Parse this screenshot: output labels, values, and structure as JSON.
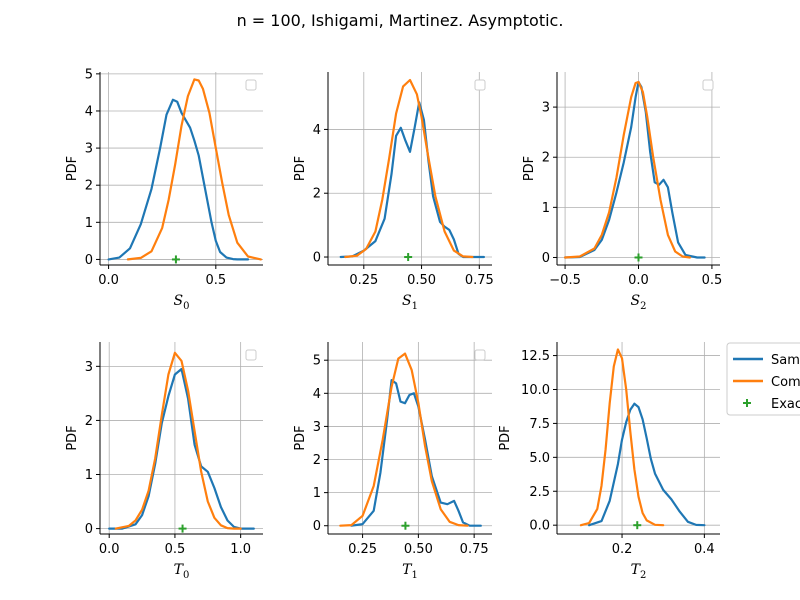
{
  "figure_title": "n = 100, Ishigami, Martinez. Asymptotic.",
  "colors": {
    "sample": "#1f77b4",
    "computed": "#ff7f0e",
    "exact": "#2ca02c",
    "grid": "#b0b0b0"
  },
  "legend": {
    "entries": [
      {
        "label": "Sam",
        "color": "#1f77b4",
        "kind": "line"
      },
      {
        "label": "Com",
        "color": "#ff7f0e",
        "kind": "line"
      },
      {
        "label": "Exac",
        "color": "#2ca02c",
        "kind": "plus"
      }
    ]
  },
  "chart_data": [
    {
      "type": "line",
      "ylabel": "PDF",
      "xlabel_symbol": "S",
      "xlabel_sub": "0",
      "xlim": [
        -0.04,
        0.72
      ],
      "ylim": [
        -0.15,
        5.05
      ],
      "xticks": [
        {
          "v": 0.0,
          "t": "0.0"
        },
        {
          "v": 0.5,
          "t": "0.5"
        }
      ],
      "yticks": [
        {
          "v": 0,
          "t": "0"
        },
        {
          "v": 1,
          "t": "1"
        },
        {
          "v": 2,
          "t": "2"
        },
        {
          "v": 3,
          "t": "3"
        },
        {
          "v": 4,
          "t": "4"
        },
        {
          "v": 5,
          "t": "5"
        }
      ],
      "empty_legend": true,
      "series": [
        {
          "color": "sample",
          "x": [
            0.0,
            0.05,
            0.1,
            0.15,
            0.2,
            0.24,
            0.27,
            0.3,
            0.32,
            0.34,
            0.36,
            0.38,
            0.4,
            0.42,
            0.45,
            0.48,
            0.5,
            0.52,
            0.55,
            0.58,
            0.6,
            0.65
          ],
          "y": [
            0.0,
            0.05,
            0.3,
            0.95,
            1.9,
            3.0,
            3.9,
            4.3,
            4.25,
            3.95,
            3.75,
            3.55,
            3.2,
            2.8,
            1.9,
            1.0,
            0.5,
            0.2,
            0.05,
            0.01,
            0.0,
            0.0
          ]
        },
        {
          "color": "computed",
          "x": [
            0.09,
            0.15,
            0.2,
            0.25,
            0.28,
            0.31,
            0.34,
            0.37,
            0.4,
            0.42,
            0.44,
            0.47,
            0.5,
            0.53,
            0.56,
            0.6,
            0.65,
            0.71
          ],
          "y": [
            0.0,
            0.04,
            0.22,
            0.85,
            1.6,
            2.55,
            3.6,
            4.4,
            4.85,
            4.82,
            4.6,
            3.95,
            3.0,
            2.05,
            1.2,
            0.45,
            0.08,
            0.0
          ]
        }
      ],
      "exact": [
        0.314,
        0
      ]
    },
    {
      "type": "line",
      "ylabel": "PDF",
      "xlabel_symbol": "S",
      "xlabel_sub": "1",
      "xlim": [
        0.095,
        0.805
      ],
      "ylim": [
        -0.25,
        5.8
      ],
      "xticks": [
        {
          "v": 0.25,
          "t": "0.25"
        },
        {
          "v": 0.5,
          "t": "0.50"
        },
        {
          "v": 0.75,
          "t": "0.75"
        }
      ],
      "yticks": [
        {
          "v": 0,
          "t": "0"
        },
        {
          "v": 2,
          "t": "2"
        },
        {
          "v": 4,
          "t": "4"
        }
      ],
      "empty_legend": true,
      "series": [
        {
          "color": "sample",
          "x": [
            0.15,
            0.2,
            0.25,
            0.3,
            0.34,
            0.37,
            0.39,
            0.41,
            0.43,
            0.45,
            0.47,
            0.49,
            0.51,
            0.53,
            0.55,
            0.58,
            0.6,
            0.62,
            0.64,
            0.66,
            0.68,
            0.72,
            0.77
          ],
          "y": [
            0.0,
            0.02,
            0.2,
            0.5,
            1.2,
            2.6,
            3.8,
            4.05,
            3.65,
            3.3,
            4.05,
            4.85,
            4.3,
            3.0,
            1.9,
            1.1,
            0.95,
            0.85,
            0.55,
            0.1,
            0.0,
            0.0,
            0.0
          ]
        },
        {
          "color": "computed",
          "x": [
            0.17,
            0.22,
            0.26,
            0.3,
            0.33,
            0.36,
            0.39,
            0.42,
            0.45,
            0.48,
            0.5,
            0.53,
            0.56,
            0.6,
            0.64,
            0.68,
            0.72
          ],
          "y": [
            0.0,
            0.04,
            0.25,
            0.8,
            1.8,
            3.1,
            4.5,
            5.35,
            5.55,
            5.1,
            4.4,
            3.1,
            1.9,
            0.8,
            0.2,
            0.02,
            0.0
          ]
        }
      ],
      "exact": [
        0.442,
        0
      ]
    },
    {
      "type": "line",
      "ylabel": "PDF",
      "xlabel_symbol": "S",
      "xlabel_sub": "2",
      "xlim": [
        -0.555,
        0.555
      ],
      "ylim": [
        -0.15,
        3.7
      ],
      "xticks": [
        {
          "v": -0.5,
          "t": "−0.5"
        },
        {
          "v": 0.0,
          "t": "0.0"
        },
        {
          "v": 0.5,
          "t": "0.5"
        }
      ],
      "yticks": [
        {
          "v": 0,
          "t": "0"
        },
        {
          "v": 1,
          "t": "1"
        },
        {
          "v": 2,
          "t": "2"
        },
        {
          "v": 3,
          "t": "3"
        }
      ],
      "empty_legend": true,
      "series": [
        {
          "color": "sample",
          "x": [
            -0.5,
            -0.4,
            -0.3,
            -0.25,
            -0.2,
            -0.15,
            -0.1,
            -0.05,
            -0.02,
            0.0,
            0.02,
            0.05,
            0.08,
            0.11,
            0.14,
            0.17,
            0.2,
            0.23,
            0.27,
            0.32,
            0.4,
            0.45
          ],
          "y": [
            0.0,
            0.01,
            0.15,
            0.35,
            0.75,
            1.3,
            1.9,
            2.6,
            3.2,
            3.5,
            3.4,
            2.9,
            2.1,
            1.5,
            1.45,
            1.55,
            1.4,
            0.9,
            0.3,
            0.05,
            0.0,
            0.0
          ]
        },
        {
          "color": "computed",
          "x": [
            -0.5,
            -0.4,
            -0.3,
            -0.25,
            -0.2,
            -0.15,
            -0.1,
            -0.05,
            -0.02,
            0.0,
            0.03,
            0.06,
            0.1,
            0.15,
            0.2,
            0.25,
            0.3,
            0.35
          ],
          "y": [
            0.0,
            0.02,
            0.18,
            0.45,
            0.9,
            1.6,
            2.45,
            3.2,
            3.48,
            3.5,
            3.3,
            2.8,
            2.0,
            1.15,
            0.45,
            0.12,
            0.02,
            0.0
          ]
        }
      ],
      "exact": [
        0.0,
        0
      ]
    },
    {
      "type": "line",
      "ylabel": "PDF",
      "xlabel_symbol": "T",
      "xlabel_sub": "0",
      "xlim": [
        -0.07,
        1.17
      ],
      "ylim": [
        -0.1,
        3.45
      ],
      "xticks": [
        {
          "v": 0.0,
          "t": "0.0"
        },
        {
          "v": 0.5,
          "t": "0.5"
        },
        {
          "v": 1.0,
          "t": "1.0"
        }
      ],
      "yticks": [
        {
          "v": 0,
          "t": "0"
        },
        {
          "v": 1,
          "t": "1"
        },
        {
          "v": 2,
          "t": "2"
        },
        {
          "v": 3,
          "t": "3"
        }
      ],
      "empty_legend": true,
      "series": [
        {
          "color": "sample",
          "x": [
            0.0,
            0.1,
            0.2,
            0.25,
            0.3,
            0.35,
            0.4,
            0.45,
            0.5,
            0.55,
            0.6,
            0.65,
            0.7,
            0.75,
            0.8,
            0.85,
            0.9,
            0.95,
            1.0,
            1.1
          ],
          "y": [
            0.0,
            0.0,
            0.08,
            0.25,
            0.6,
            1.2,
            1.95,
            2.45,
            2.85,
            2.95,
            2.4,
            1.55,
            1.15,
            1.05,
            0.75,
            0.4,
            0.15,
            0.03,
            0.0,
            0.0
          ]
        },
        {
          "color": "computed",
          "x": [
            0.05,
            0.15,
            0.2,
            0.25,
            0.3,
            0.35,
            0.4,
            0.45,
            0.5,
            0.55,
            0.6,
            0.65,
            0.7,
            0.75,
            0.8,
            0.85,
            0.9,
            0.95,
            1.0
          ],
          "y": [
            0.0,
            0.05,
            0.15,
            0.35,
            0.7,
            1.3,
            2.1,
            2.85,
            3.25,
            3.1,
            2.55,
            1.8,
            1.05,
            0.5,
            0.2,
            0.06,
            0.01,
            0.0,
            0.0
          ]
        }
      ],
      "exact": [
        0.558,
        0
      ]
    },
    {
      "type": "line",
      "ylabel": "PDF",
      "xlabel_symbol": "T",
      "xlabel_sub": "1",
      "xlim": [
        0.095,
        0.83
      ],
      "ylim": [
        -0.25,
        5.55
      ],
      "xticks": [
        {
          "v": 0.25,
          "t": "0.25"
        },
        {
          "v": 0.5,
          "t": "0.50"
        },
        {
          "v": 0.75,
          "t": "0.75"
        }
      ],
      "yticks": [
        {
          "v": 0,
          "t": "0"
        },
        {
          "v": 1,
          "t": "1"
        },
        {
          "v": 2,
          "t": "2"
        },
        {
          "v": 3,
          "t": "3"
        },
        {
          "v": 4,
          "t": "4"
        },
        {
          "v": 5,
          "t": "5"
        }
      ],
      "empty_legend": true,
      "series": [
        {
          "color": "sample",
          "x": [
            0.2,
            0.25,
            0.3,
            0.33,
            0.36,
            0.38,
            0.4,
            0.42,
            0.44,
            0.46,
            0.48,
            0.5,
            0.53,
            0.56,
            0.6,
            0.63,
            0.66,
            0.68,
            0.7,
            0.73,
            0.78
          ],
          "y": [
            0.0,
            0.05,
            0.45,
            1.6,
            3.2,
            4.4,
            4.3,
            3.75,
            3.7,
            3.95,
            4.0,
            3.6,
            2.6,
            1.5,
            0.7,
            0.65,
            0.75,
            0.45,
            0.1,
            0.0,
            0.0
          ]
        },
        {
          "color": "computed",
          "x": [
            0.15,
            0.2,
            0.25,
            0.3,
            0.34,
            0.38,
            0.41,
            0.44,
            0.47,
            0.5,
            0.53,
            0.56,
            0.6,
            0.64,
            0.68,
            0.72
          ],
          "y": [
            0.0,
            0.02,
            0.3,
            1.2,
            2.6,
            4.2,
            5.05,
            5.2,
            4.7,
            3.7,
            2.4,
            1.35,
            0.5,
            0.12,
            0.02,
            0.0
          ]
        }
      ],
      "exact": [
        0.442,
        0
      ]
    },
    {
      "type": "line",
      "ylabel": "PDF",
      "xlabel_symbol": "T",
      "xlabel_sub": "2",
      "xlim": [
        0.042,
        0.438
      ],
      "ylim": [
        -0.65,
        13.5
      ],
      "xticks": [
        {
          "v": 0.2,
          "t": "0.2"
        },
        {
          "v": 0.4,
          "t": "0.4"
        }
      ],
      "yticks": [
        {
          "v": 0,
          "t": "0.0"
        },
        {
          "v": 2.5,
          "t": "2.5"
        },
        {
          "v": 5,
          "t": "5.0"
        },
        {
          "v": 7.5,
          "t": "7.5"
        },
        {
          "v": 10,
          "t": "10.0"
        },
        {
          "v": 12.5,
          "t": "12.5"
        }
      ],
      "empty_legend": false,
      "series": [
        {
          "color": "sample",
          "x": [
            0.12,
            0.15,
            0.17,
            0.19,
            0.2,
            0.21,
            0.22,
            0.23,
            0.24,
            0.25,
            0.26,
            0.27,
            0.28,
            0.3,
            0.32,
            0.34,
            0.36,
            0.38,
            0.4
          ],
          "y": [
            0.0,
            0.3,
            1.8,
            4.5,
            6.3,
            7.6,
            8.5,
            8.95,
            8.7,
            7.8,
            6.4,
            4.9,
            3.8,
            2.6,
            1.9,
            1.0,
            0.25,
            0.02,
            0.0
          ]
        },
        {
          "color": "computed",
          "x": [
            0.1,
            0.12,
            0.14,
            0.15,
            0.16,
            0.17,
            0.18,
            0.19,
            0.2,
            0.21,
            0.22,
            0.23,
            0.24,
            0.25,
            0.26,
            0.28,
            0.3
          ],
          "y": [
            0.0,
            0.15,
            1.2,
            2.9,
            5.6,
            9.0,
            11.7,
            12.95,
            12.3,
            10.0,
            6.9,
            4.1,
            2.1,
            0.9,
            0.35,
            0.03,
            0.0
          ]
        }
      ],
      "exact": [
        0.237,
        0
      ]
    }
  ]
}
